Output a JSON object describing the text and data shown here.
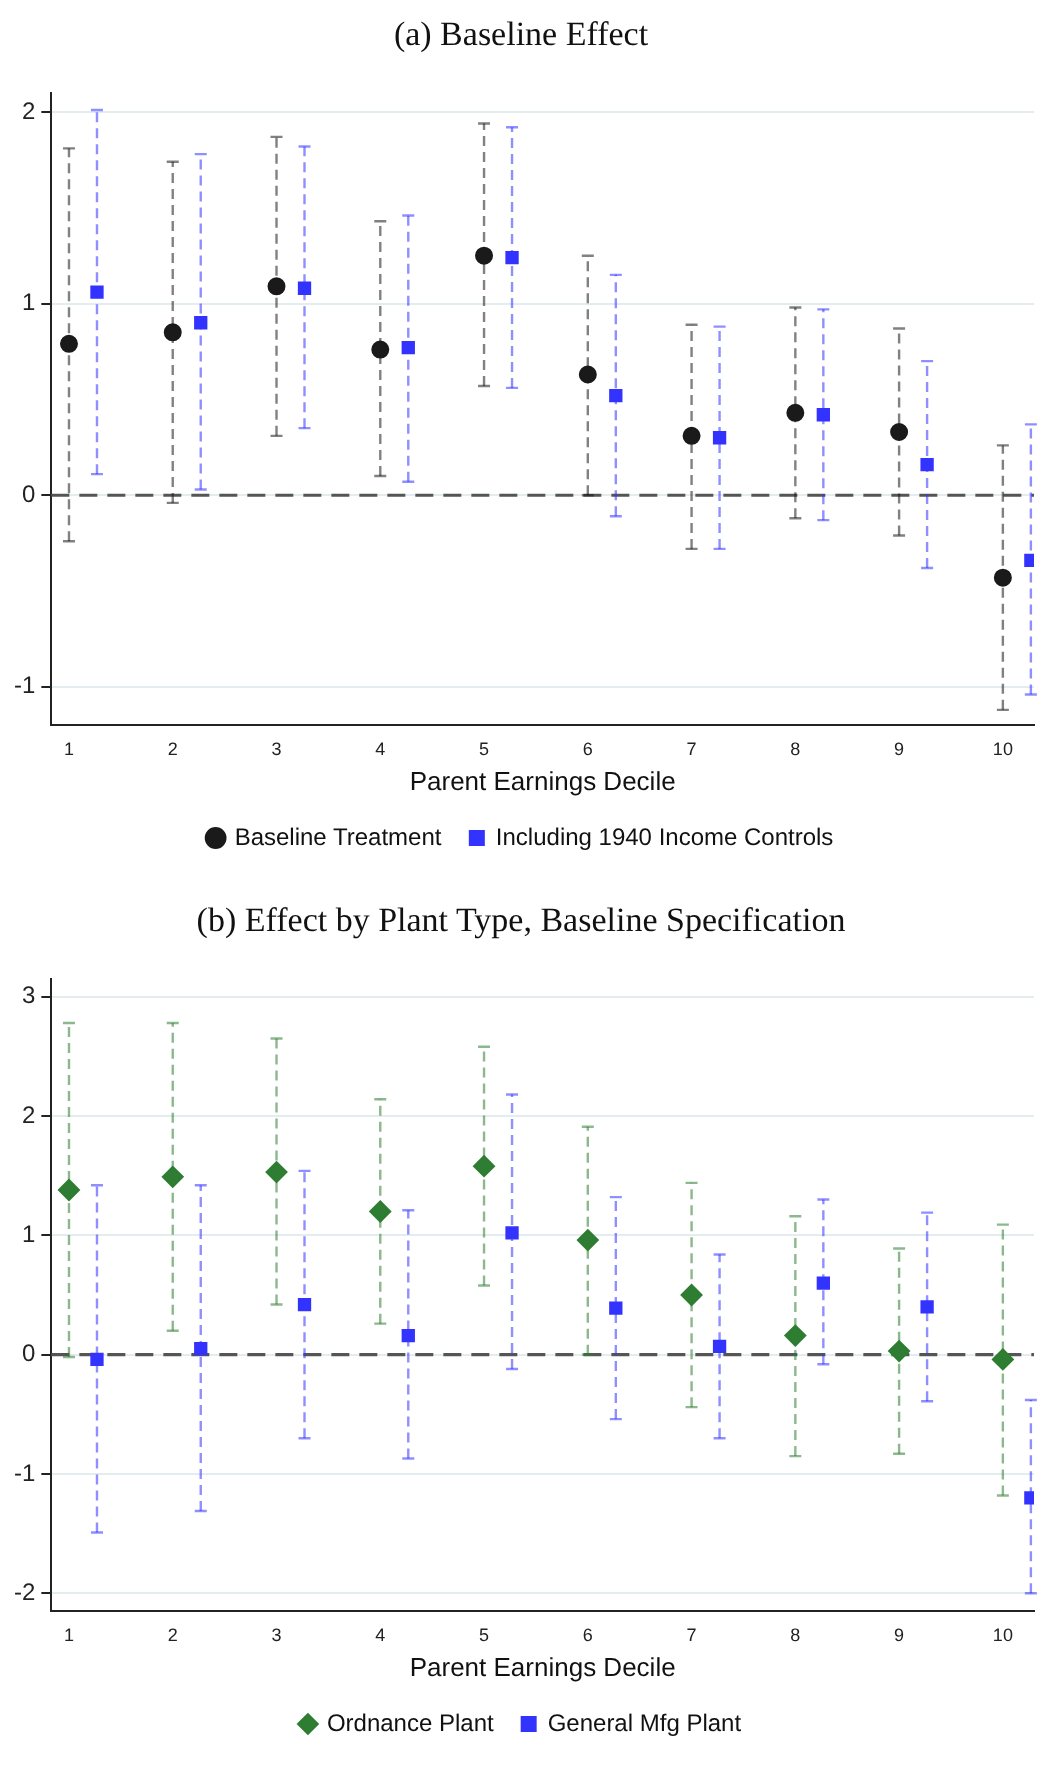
{
  "chart_data": [
    {
      "type": "scatter",
      "title": "(a) Baseline Effect",
      "xlabel": "Parent Earnings Decile",
      "categories": [
        "1",
        "2",
        "3",
        "4",
        "5",
        "6",
        "7",
        "8",
        "9",
        "10"
      ],
      "series": [
        {
          "name": "Baseline Treatment",
          "color": "#1a1a1a",
          "marker": "circle",
          "values": [
            0.79,
            0.85,
            1.09,
            0.76,
            1.25,
            0.63,
            0.31,
            0.43,
            0.33,
            -0.43
          ],
          "errors": [
            [
              -0.24,
              1.81
            ],
            [
              -0.04,
              1.74
            ],
            [
              0.31,
              1.87
            ],
            [
              0.1,
              1.43
            ],
            [
              0.57,
              1.94
            ],
            [
              0.0,
              1.25
            ],
            [
              -0.28,
              0.89
            ],
            [
              -0.12,
              0.98
            ],
            [
              -0.21,
              0.87
            ],
            [
              -1.12,
              0.26
            ]
          ]
        },
        {
          "name": "Including 1940 Income Controls",
          "color": "#3333ff",
          "marker": "square",
          "values": [
            1.06,
            0.9,
            1.08,
            0.77,
            1.24,
            0.52,
            0.3,
            0.42,
            0.16,
            -0.34
          ],
          "errors": [
            [
              0.11,
              2.01
            ],
            [
              0.03,
              1.78
            ],
            [
              0.35,
              1.82
            ],
            [
              0.07,
              1.46
            ],
            [
              0.56,
              1.92
            ],
            [
              -0.11,
              1.15
            ],
            [
              -0.28,
              0.88
            ],
            [
              -0.13,
              0.97
            ],
            [
              -0.38,
              0.7
            ],
            [
              -1.04,
              0.37
            ]
          ]
        }
      ],
      "ylim": [
        -1.2,
        2.1
      ],
      "yticks": [
        -1,
        0,
        1,
        2
      ],
      "grid": "y",
      "legend": "bottom",
      "ref_lines": [
        {
          "axis": "y",
          "value": 0,
          "color": "#555555",
          "line_style": "dashed"
        }
      ]
    },
    {
      "type": "scatter",
      "title": "(b) Effect by Plant Type, Baseline Specification",
      "xlabel": "Parent Earnings Decile",
      "categories": [
        "1",
        "2",
        "3",
        "4",
        "5",
        "6",
        "7",
        "8",
        "9",
        "10"
      ],
      "series": [
        {
          "name": "Ordnance Plant",
          "color": "#2e7d32",
          "marker": "diamond",
          "values": [
            1.38,
            1.49,
            1.53,
            1.2,
            1.58,
            0.96,
            0.5,
            0.16,
            0.03,
            -0.04
          ],
          "errors": [
            [
              -0.02,
              2.78
            ],
            [
              0.2,
              2.78
            ],
            [
              0.42,
              2.65
            ],
            [
              0.26,
              2.14
            ],
            [
              0.58,
              2.58
            ],
            [
              0.0,
              1.91
            ],
            [
              -0.44,
              1.44
            ],
            [
              -0.85,
              1.16
            ],
            [
              -0.83,
              0.89
            ],
            [
              -1.18,
              1.09
            ]
          ]
        },
        {
          "name": "General Mfg Plant",
          "color": "#3333ff",
          "marker": "square",
          "values": [
            -0.04,
            0.05,
            0.42,
            0.16,
            1.02,
            0.39,
            0.07,
            0.6,
            0.4,
            -1.2
          ],
          "errors": [
            [
              -1.49,
              1.42
            ],
            [
              -1.31,
              1.42
            ],
            [
              -0.7,
              1.54
            ],
            [
              -0.87,
              1.21
            ],
            [
              -0.12,
              2.18
            ],
            [
              -0.54,
              1.32
            ],
            [
              -0.7,
              0.84
            ],
            [
              -0.08,
              1.3
            ],
            [
              -0.39,
              1.19
            ],
            [
              -2.0,
              -0.38
            ]
          ]
        }
      ],
      "ylim": [
        -2.15,
        3.15
      ],
      "yticks": [
        -2,
        -1,
        0,
        1,
        2,
        3
      ],
      "grid": "y",
      "legend": "bottom",
      "ref_lines": [
        {
          "axis": "y",
          "value": 0,
          "color": "#555555",
          "line_style": "dashed"
        }
      ]
    }
  ]
}
